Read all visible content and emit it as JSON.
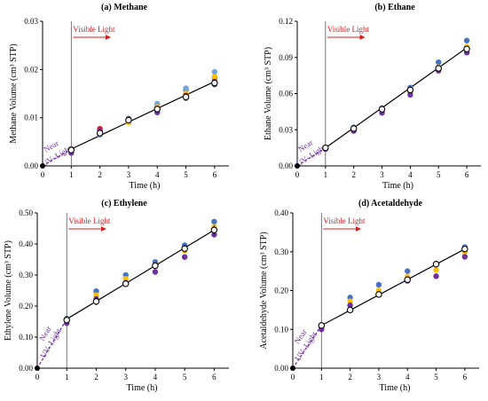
{
  "chart_data": [
    {
      "type": "scatter",
      "title": "(a) Methane",
      "xlabel": "Time (h)",
      "ylabel": "Methane Volume (cm³ STP)",
      "xlim": [
        0,
        6.5
      ],
      "ylim": [
        0,
        0.03
      ],
      "xticks": [
        "0",
        "1",
        "2",
        "3",
        "4",
        "5",
        "6"
      ],
      "yticks": [
        "0.00",
        "0.01",
        "0.02",
        "0.03"
      ],
      "annotations": [
        "Visible Light",
        "Near",
        "UV- Light"
      ],
      "fit_line": {
        "x": [
          1,
          6
        ],
        "y": [
          0.0035,
          0.0175
        ]
      },
      "uv_line": {
        "x": [
          0,
          1
        ],
        "y": [
          0,
          0.0035
        ]
      },
      "series": [
        {
          "color": "#000000",
          "marker": "open-circle",
          "x": [
            0,
            1,
            2,
            3,
            4,
            5,
            6
          ],
          "y": [
            0,
            0.0033,
            0.0068,
            0.0095,
            0.0118,
            0.0143,
            0.0172
          ],
          "error": [
            0,
            0,
            0,
            0,
            0,
            0.0008,
            0.0005
          ]
        },
        {
          "color": "#4472c4",
          "x": [
            1,
            2,
            3,
            4,
            5,
            6
          ],
          "y": [
            0.003,
            0.0065,
            0.0098,
            0.0127,
            0.0158,
            0.0183
          ]
        },
        {
          "color": "#6fa8dc",
          "x": [
            1,
            2,
            3,
            4,
            5,
            6
          ],
          "y": [
            0.0033,
            0.0066,
            0.0093,
            0.0129,
            0.0161,
            0.0195
          ]
        },
        {
          "color": "#ffc000",
          "x": [
            1,
            2,
            3,
            4,
            5,
            6
          ],
          "y": [
            0.0028,
            0.0072,
            0.009,
            0.0122,
            0.015,
            0.0185
          ]
        },
        {
          "color": "#e0181c",
          "x": [
            1,
            2,
            3,
            4,
            5,
            6
          ],
          "y": [
            0.0035,
            0.0077,
            0.0094,
            0.0119,
            0.0146,
            0.0175
          ]
        },
        {
          "color": "#7030a0",
          "x": [
            1,
            2,
            3,
            4,
            5,
            6
          ],
          "y": [
            0.0027,
            0.0073,
            0.0097,
            0.0111,
            0.0141,
            0.0169
          ]
        }
      ]
    },
    {
      "type": "scatter",
      "title": "(b) Ethane",
      "xlabel": "Time (h)",
      "ylabel": "Ethane Volume (cm³ STP)",
      "xlim": [
        0,
        6.5
      ],
      "ylim": [
        0,
        0.12
      ],
      "xticks": [
        "0",
        "1",
        "2",
        "3",
        "4",
        "5",
        "6"
      ],
      "yticks": [
        "0.00",
        "0.03",
        "0.06",
        "0.09",
        "0.12"
      ],
      "annotations": [
        "Visible Light",
        "Near",
        "UV- Light"
      ],
      "fit_line": {
        "x": [
          1,
          6
        ],
        "y": [
          0.015,
          0.098
        ]
      },
      "uv_line": {
        "x": [
          0,
          1
        ],
        "y": [
          0,
          0.015
        ]
      },
      "series": [
        {
          "color": "#000000",
          "marker": "open-circle",
          "x": [
            0,
            1,
            2,
            3,
            4,
            5,
            6
          ],
          "y": [
            0,
            0.015,
            0.031,
            0.047,
            0.063,
            0.081,
            0.097
          ]
        },
        {
          "color": "#4472c4",
          "x": [
            1,
            2,
            3,
            4,
            5,
            6
          ],
          "y": [
            0.015,
            0.032,
            0.048,
            0.065,
            0.086,
            0.104
          ]
        },
        {
          "color": "#ffc000",
          "x": [
            1,
            2,
            3,
            4,
            5,
            6
          ],
          "y": [
            0.015,
            0.031,
            0.046,
            0.061,
            0.082,
            0.099
          ]
        },
        {
          "color": "#7030a0",
          "x": [
            1,
            2,
            3,
            4,
            5,
            6
          ],
          "y": [
            0.014,
            0.029,
            0.044,
            0.059,
            0.079,
            0.094
          ]
        }
      ]
    },
    {
      "type": "scatter",
      "title": "(c) Ethylene",
      "xlabel": "Time (h)",
      "ylabel": "Ethylene Volume (cm³ STP)",
      "xlim": [
        0,
        6.5
      ],
      "ylim": [
        0,
        0.5
      ],
      "xticks": [
        "0",
        "1",
        "2",
        "3",
        "4",
        "5",
        "6"
      ],
      "yticks": [
        "0.00",
        "0.10",
        "0.20",
        "0.30",
        "0.40",
        "0.50"
      ],
      "annotations": [
        "Visible Light",
        "Near",
        "UV- Light"
      ],
      "fit_line": {
        "x": [
          1,
          6
        ],
        "y": [
          0.158,
          0.445
        ]
      },
      "uv_line": {
        "x": [
          0,
          1
        ],
        "y": [
          0,
          0.158
        ]
      },
      "series": [
        {
          "color": "#000000",
          "marker": "open-circle",
          "x": [
            0,
            1,
            2,
            3,
            4,
            5,
            6
          ],
          "y": [
            0,
            0.155,
            0.215,
            0.272,
            0.33,
            0.385,
            0.445
          ],
          "error": [
            0,
            0.012,
            0.012,
            0.01,
            0.01,
            0.012,
            0.015
          ]
        },
        {
          "color": "#4472c4",
          "x": [
            1,
            2,
            3,
            4,
            5,
            6
          ],
          "y": [
            0.16,
            0.248,
            0.3,
            0.342,
            0.396,
            0.472
          ]
        },
        {
          "color": "#ffc000",
          "x": [
            1,
            2,
            3,
            4,
            5,
            6
          ],
          "y": [
            0.158,
            0.235,
            0.288,
            0.332,
            0.378,
            0.455
          ]
        },
        {
          "color": "#7030a0",
          "x": [
            1,
            2,
            3,
            4,
            5,
            6
          ],
          "y": [
            0.145,
            0.223,
            0.275,
            0.31,
            0.358,
            0.43
          ]
        }
      ]
    },
    {
      "type": "scatter",
      "title": "(d) Acetaldehyde",
      "xlabel": "Time (h)",
      "ylabel": "Acetaldehyde Volume (cm³ STP)",
      "xlim": [
        0,
        6.5
      ],
      "ylim": [
        0,
        0.4
      ],
      "xticks": [
        "0",
        "1",
        "2",
        "3",
        "4",
        "5",
        "6"
      ],
      "yticks": [
        "0.00",
        "0.10",
        "0.20",
        "0.30",
        "0.40"
      ],
      "annotations": [
        "Visible Light",
        "Near",
        "UV- Light"
      ],
      "fit_line": {
        "x": [
          1,
          6
        ],
        "y": [
          0.11,
          0.307
        ]
      },
      "uv_line": {
        "x": [
          0,
          1
        ],
        "y": [
          0,
          0.11
        ]
      },
      "series": [
        {
          "color": "#000000",
          "marker": "open-circle",
          "x": [
            0,
            1,
            2,
            3,
            4,
            5,
            6
          ],
          "y": [
            0,
            0.11,
            0.15,
            0.19,
            0.228,
            0.268,
            0.307
          ],
          "error": [
            0,
            0.006,
            0.006,
            0.006,
            0.006,
            0.008,
            0.008
          ]
        },
        {
          "color": "#4472c4",
          "x": [
            1,
            2,
            3,
            4,
            5,
            6
          ],
          "y": [
            0.108,
            0.182,
            0.215,
            0.25,
            0.268,
            0.312
          ]
        },
        {
          "color": "#ffc000",
          "x": [
            1,
            2,
            3,
            4,
            5,
            6
          ],
          "y": [
            0.105,
            0.172,
            0.2,
            0.236,
            0.253,
            0.3
          ]
        },
        {
          "color": "#7030a0",
          "x": [
            1,
            2,
            3,
            4,
            5,
            6
          ],
          "y": [
            0.1,
            0.162,
            0.19,
            0.225,
            0.237,
            0.287
          ]
        }
      ]
    }
  ]
}
